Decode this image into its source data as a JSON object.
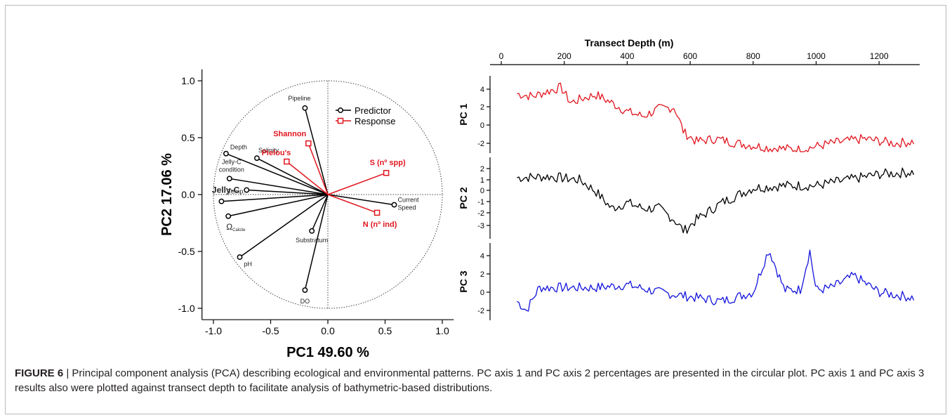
{
  "caption": {
    "label": "FIGURE 6",
    "separator": " | ",
    "text": "Principal component analysis (PCA) describing ecological and environmental patterns. PC axis 1 and PC axis 2 percentages are presented in the circular plot. PC axis 1 and PC axis 3 results also were plotted against transect depth to facilitate analysis of bathymetric-based distributions."
  },
  "colors": {
    "predictor": "#000000",
    "response": "#e0161e",
    "pc3": "#1414dc",
    "frame": "#b9b9b9"
  },
  "chart_data": [
    {
      "type": "scatter",
      "subtype": "pca-biplot",
      "xlabel": "PC1 49.60 %",
      "ylabel": "PC2 17.06 %",
      "xlim": [
        -1.1,
        1.1
      ],
      "ylim": [
        -1.1,
        1.1
      ],
      "xticks": [
        "-1.0",
        "-0.5",
        "0.0",
        "0.5",
        "1.0"
      ],
      "yticks": [
        "-1.0",
        "-0.5",
        "0.0",
        "0.5",
        "1.0"
      ],
      "legend": {
        "position": "top-right-inside",
        "entries": [
          {
            "name": "Predictor",
            "marker": "circle",
            "color": "#000000"
          },
          {
            "name": "Response",
            "marker": "square",
            "color": "#e0161e"
          }
        ]
      },
      "series": [
        {
          "name": "Predictor",
          "points": [
            {
              "label": "Pipeline",
              "x": -0.2,
              "y": 0.76
            },
            {
              "label": "Depth",
              "x": -0.89,
              "y": 0.36
            },
            {
              "label": "Salinity",
              "x": -0.62,
              "y": 0.32
            },
            {
              "label": "Jelly-C condition",
              "x": -0.86,
              "y": 0.14
            },
            {
              "label": "Jelly-C",
              "x": -0.71,
              "y": 0.04
            },
            {
              "label": "Temp.",
              "x": -0.93,
              "y": -0.06
            },
            {
              "label": "Ω",
              "label_sub": "Calcite",
              "x": -0.87,
              "y": -0.19
            },
            {
              "label": "pH",
              "x": -0.77,
              "y": -0.55
            },
            {
              "label": "DO",
              "x": -0.2,
              "y": -0.84
            },
            {
              "label": "Substratum",
              "x": -0.14,
              "y": -0.32
            },
            {
              "label": "Current Speed",
              "x": 0.58,
              "y": -0.09
            }
          ]
        },
        {
          "name": "Response",
          "points": [
            {
              "label": "Shannon",
              "x": -0.17,
              "y": 0.45
            },
            {
              "label": "Pielou's",
              "x": -0.36,
              "y": 0.29
            },
            {
              "label": "S (nº spp)",
              "x": 0.51,
              "y": 0.19
            },
            {
              "label": "N (nº ind)",
              "x": 0.43,
              "y": -0.16
            }
          ]
        }
      ]
    },
    {
      "type": "line",
      "xlabel": "Transect Depth (m)",
      "xlim": [
        0,
        1300
      ],
      "xticks": [
        "0",
        "200",
        "400",
        "600",
        "800",
        "1000",
        "1200"
      ],
      "panels": [
        {
          "ylabel": "PC 1",
          "color": "#e0161e",
          "ylim": [
            -3,
            5
          ],
          "yticks": [
            "4",
            "2",
            "0",
            "-2"
          ],
          "x": [
            50,
            100,
            150,
            190,
            220,
            260,
            300,
            350,
            400,
            450,
            500,
            550,
            580,
            620,
            680,
            750,
            850,
            950,
            1050,
            1150,
            1250,
            1310
          ],
          "y": [
            3.5,
            3.2,
            3.8,
            4.2,
            2.5,
            3.0,
            3.4,
            2.5,
            1.5,
            1.0,
            1.8,
            2.0,
            -0.8,
            -1.8,
            -1.5,
            -2.0,
            -2.5,
            -2.7,
            -2.0,
            -1.5,
            -2.0,
            -1.8
          ]
        },
        {
          "ylabel": "PC 2",
          "color": "#000000",
          "ylim": [
            -4,
            2.5
          ],
          "yticks": [
            "2",
            "1",
            "0",
            "-1",
            "-2",
            "-3"
          ],
          "x": [
            50,
            150,
            250,
            300,
            350,
            400,
            450,
            500,
            550,
            580,
            620,
            700,
            800,
            900,
            1000,
            1100,
            1200,
            1310
          ],
          "y": [
            1.2,
            1.3,
            1.0,
            0.0,
            -1.5,
            -1.0,
            -1.5,
            -1.5,
            -2.5,
            -3.5,
            -2.5,
            -1.0,
            0.3,
            0.5,
            0.5,
            1.0,
            1.5,
            1.7
          ]
        },
        {
          "ylabel": "PC 3",
          "color": "#1414dc",
          "ylim": [
            -3,
            5.5
          ],
          "yticks": [
            "4",
            "2",
            "0",
            "-2"
          ],
          "x": [
            50,
            80,
            120,
            200,
            300,
            400,
            500,
            600,
            700,
            800,
            850,
            900,
            950,
            980,
            1000,
            1050,
            1120,
            1200,
            1310
          ],
          "y": [
            -1.0,
            -2.0,
            0.5,
            0.5,
            0.5,
            0.8,
            0.0,
            -0.5,
            -1.0,
            0.0,
            4.7,
            0.2,
            0.3,
            4.5,
            0.2,
            0.5,
            1.8,
            0.0,
            -0.6
          ]
        }
      ]
    }
  ]
}
